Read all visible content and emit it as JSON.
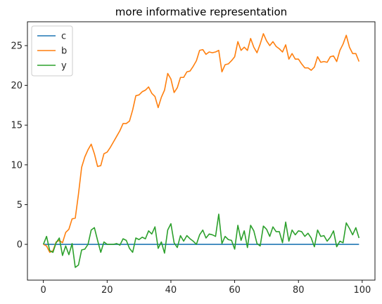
{
  "chart_data": {
    "type": "line",
    "title": "more informative representation",
    "xlabel": "",
    "ylabel": "",
    "xlim": [
      -5,
      104
    ],
    "ylim": [
      -4.5,
      28
    ],
    "xticks": [
      0,
      20,
      40,
      60,
      80,
      100
    ],
    "yticks": [
      0,
      5,
      10,
      15,
      20,
      25
    ],
    "grid": false,
    "legend_position": "top-left",
    "x": [
      0,
      1,
      2,
      3,
      4,
      5,
      6,
      7,
      8,
      9,
      10,
      11,
      12,
      13,
      14,
      15,
      16,
      17,
      18,
      19,
      20,
      21,
      22,
      23,
      24,
      25,
      26,
      27,
      28,
      29,
      30,
      31,
      32,
      33,
      34,
      35,
      36,
      37,
      38,
      39,
      40,
      41,
      42,
      43,
      44,
      45,
      46,
      47,
      48,
      49,
      50,
      51,
      52,
      53,
      54,
      55,
      56,
      57,
      58,
      59,
      60,
      61,
      62,
      63,
      64,
      65,
      66,
      67,
      68,
      69,
      70,
      71,
      72,
      73,
      74,
      75,
      76,
      77,
      78,
      79,
      80,
      81,
      82,
      83,
      84,
      85,
      86,
      87,
      88,
      89,
      90,
      91,
      92,
      93,
      94,
      95,
      96,
      97,
      98,
      99
    ],
    "series": [
      {
        "name": "c",
        "color": "#1f77b4",
        "values": [
          0,
          0,
          0,
          0,
          0,
          0,
          0,
          0,
          0,
          0,
          0,
          0,
          0,
          0,
          0,
          0,
          0,
          0,
          0,
          0,
          0,
          0,
          0,
          0,
          0,
          0,
          0,
          0,
          0,
          0,
          0,
          0,
          0,
          0,
          0,
          0,
          0,
          0,
          0,
          0,
          0,
          0,
          0,
          0,
          0,
          0,
          0,
          0,
          0,
          0,
          0,
          0,
          0,
          0,
          0,
          0,
          0,
          0,
          0,
          0,
          0,
          0,
          0,
          0,
          0,
          0,
          0,
          0,
          0,
          0,
          0,
          0,
          0,
          0,
          0,
          0,
          0,
          0,
          0,
          0,
          0,
          0,
          0,
          0,
          0,
          0,
          0,
          0,
          0,
          0,
          0,
          0,
          0,
          0,
          0,
          0,
          0,
          0,
          0,
          0
        ]
      },
      {
        "name": "b",
        "color": "#ff7f0e",
        "values": [
          0,
          -0.2,
          -1.0,
          -0.8,
          0.3,
          0.5,
          0.2,
          1.5,
          1.9,
          3.2,
          3.3,
          6.3,
          9.7,
          11.0,
          11.9,
          12.6,
          11.4,
          9.8,
          9.9,
          11.4,
          11.6,
          12.2,
          12.9,
          13.6,
          14.3,
          15.2,
          15.2,
          15.5,
          16.9,
          18.7,
          18.8,
          19.2,
          19.4,
          19.8,
          19.0,
          18.6,
          17.2,
          18.5,
          19.4,
          21.5,
          20.8,
          19.1,
          19.7,
          21.0,
          21.0,
          21.7,
          21.8,
          22.4,
          23.1,
          24.4,
          24.5,
          23.9,
          24.2,
          24.1,
          24.2,
          24.4,
          21.7,
          22.6,
          22.7,
          23.1,
          23.6,
          25.5,
          24.4,
          24.8,
          24.4,
          25.9,
          24.8,
          24.1,
          25.2,
          26.5,
          25.6,
          25.0,
          25.5,
          24.9,
          24.6,
          24.2,
          25.1,
          23.3,
          24.0,
          23.3,
          23.3,
          22.7,
          22.2,
          22.2,
          21.9,
          22.3,
          23.6,
          22.9,
          23.0,
          22.9,
          23.6,
          23.7,
          23.0,
          24.4,
          25.2,
          26.3,
          24.8,
          24.0,
          24.0,
          23.0
        ]
      },
      {
        "name": "y",
        "color": "#2ca02c",
        "values": [
          0,
          1.0,
          -0.8,
          -1.0,
          0.2,
          0.8,
          -1.4,
          -0.2,
          -1.3,
          0.1,
          -2.9,
          -2.6,
          -0.7,
          -0.6,
          0.0,
          1.8,
          2.1,
          0.5,
          -1.0,
          0.3,
          0.0,
          0.0,
          0.0,
          0.1,
          -0.1,
          0.7,
          0.5,
          -0.5,
          -1.0,
          0.8,
          0.6,
          0.9,
          0.7,
          1.7,
          1.3,
          2.2,
          -0.5,
          0.3,
          -1.1,
          1.8,
          2.6,
          0.2,
          -0.4,
          1.1,
          0.4,
          1.1,
          0.7,
          0.4,
          0.0,
          1.2,
          1.8,
          0.8,
          1.3,
          1.2,
          1.0,
          3.8,
          0.1,
          1.0,
          0.6,
          0.5,
          -0.6,
          2.4,
          0.5,
          1.7,
          -0.4,
          2.4,
          1.7,
          0.1,
          -0.2,
          2.3,
          1.9,
          1.0,
          2.2,
          1.6,
          1.6,
          0.2,
          2.8,
          0.4,
          1.8,
          1.2,
          1.7,
          1.6,
          1.0,
          1.4,
          0.8,
          -0.3,
          1.8,
          1.0,
          1.1,
          0.4,
          0.9,
          1.7,
          -0.3,
          0.4,
          0.2,
          2.7,
          2.0,
          1.2,
          2.1,
          0.8
        ]
      }
    ]
  }
}
